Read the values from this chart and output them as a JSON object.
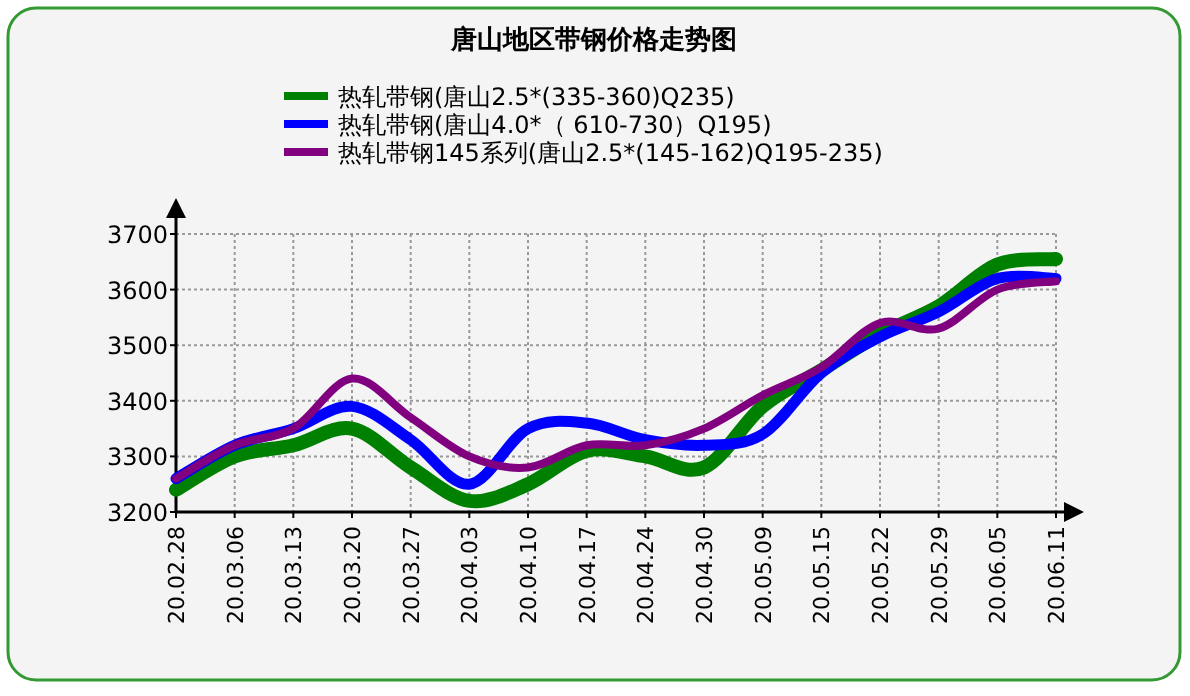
{
  "chart_data": {
    "type": "line",
    "title": "唐山地区带钢价格走势图",
    "categories": [
      "20.02.28",
      "20.03.06",
      "20.03.13",
      "20.03.20",
      "20.03.27",
      "20.04.03",
      "20.04.10",
      "20.04.17",
      "20.04.24",
      "20.04.30",
      "20.05.09",
      "20.05.15",
      "20.05.22",
      "20.05.29",
      "20.06.05",
      "20.06.11"
    ],
    "series": [
      {
        "name": "热轧带钢(唐山2.5*(335-360)Q235)",
        "color": "#008000",
        "values": [
          3240,
          3300,
          3320,
          3350,
          3280,
          3220,
          3250,
          3310,
          3300,
          3280,
          3390,
          3455,
          3520,
          3570,
          3645,
          3655
        ]
      },
      {
        "name": "热轧带钢(唐山4.0*（ 610-730）Q195)",
        "color": "#0000ff",
        "values": [
          3260,
          3320,
          3350,
          3390,
          3330,
          3250,
          3350,
          3360,
          3330,
          3320,
          3340,
          3450,
          3515,
          3560,
          3620,
          3620
        ]
      },
      {
        "name": "热轧带钢145系列(唐山2.5*(145-162)Q195-235)",
        "color": "#800080",
        "values": [
          3260,
          3320,
          3350,
          3440,
          3370,
          3300,
          3280,
          3320,
          3320,
          3350,
          3410,
          3460,
          3540,
          3530,
          3600,
          3615
        ]
      }
    ],
    "ylim": [
      3200,
      3700
    ],
    "yticks": [
      3200,
      3300,
      3400,
      3500,
      3600,
      3700
    ],
    "grid": true,
    "legend": "top",
    "marker": "none",
    "line_style": "solid"
  }
}
